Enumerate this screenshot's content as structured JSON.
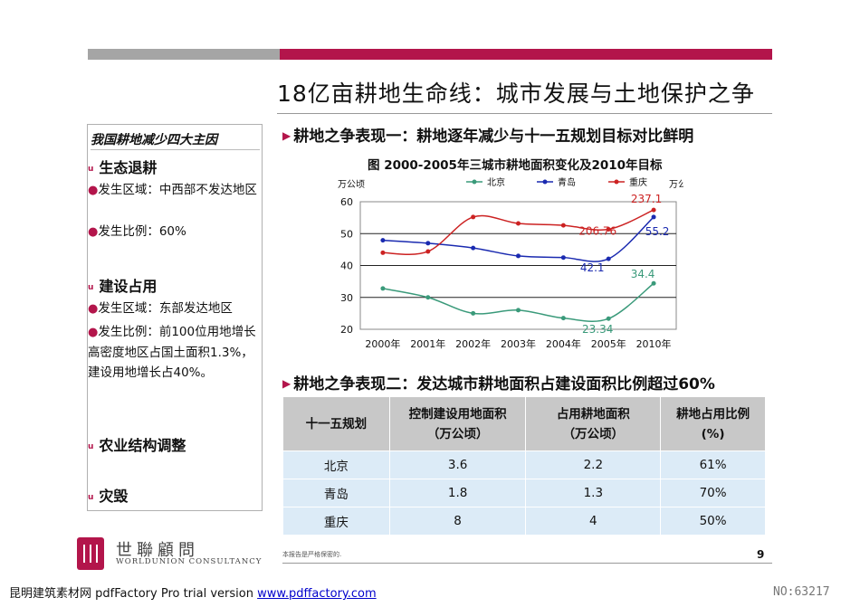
{
  "page": {
    "title": "18亿亩耕地生命线：城市发展与土地保护之争",
    "page_number": "9",
    "footnote": "本报告是严格保密的.",
    "brand_cn": "世聯顧問",
    "brand_en": "WORLDUNION CONSULTANCY",
    "bottom_text": "昆明建筑素材网 pdfFactory Pro trial version ",
    "bottom_link": "www.pdffactory.com",
    "id_label": "NO:63217",
    "accent_color": "#b3154b",
    "gray_color": "#a5a5a5"
  },
  "sidebar": {
    "heading": "我国耕地减少四大主因",
    "bullet_marker": "u",
    "dot_marker": "●",
    "causes": [
      {
        "title": "生态退耕",
        "lines": [
          "发生区域：中西部不发达地区",
          "发生比例：60%"
        ]
      },
      {
        "title": "建设占用",
        "lines": [
          "发生区域：东部发达地区",
          "发生比例：前100位用地增长高密度地区占国土面积1.3%，建设用地增长占40%。"
        ]
      },
      {
        "title": "农业结构调整",
        "lines": []
      },
      {
        "title": "灾毁",
        "lines": []
      }
    ]
  },
  "section1": {
    "marker": "▶",
    "heading": "耕地之争表现一：耕地逐年减少与十一五规划目标对比鲜明"
  },
  "section2": {
    "marker": "▶",
    "heading": "耕地之争表现二：发达城市耕地面积占建设面积比例超过60%"
  },
  "chart_data": {
    "type": "line",
    "title": "图 2000-2005年三城市耕地面积变化及2010年目标",
    "ylabel_left": "万公顷",
    "ylabel_right": "万公顷",
    "categories": [
      "2000年",
      "2001年",
      "2002年",
      "2003年",
      "2004年",
      "2005年",
      "2010年"
    ],
    "ylim_left": [
      20,
      60
    ],
    "yticks_left": [
      20,
      30,
      40,
      50,
      60
    ],
    "ylim_right": [
      50,
      250
    ],
    "yticks_right": [
      50,
      100,
      150,
      200,
      250
    ],
    "grid": "horizontal",
    "legend_position": "top",
    "series": [
      {
        "name": "北京",
        "axis": "left",
        "color": "#3a9a7a",
        "values": [
          32.8,
          30.0,
          25.0,
          26.0,
          23.5,
          23.34,
          34.4
        ]
      },
      {
        "name": "青岛",
        "axis": "left",
        "color": "#1a2ab0",
        "values": [
          47.9,
          47.0,
          45.5,
          43.0,
          42.5,
          42.1,
          55.2
        ]
      },
      {
        "name": "重庆",
        "axis": "right",
        "color": "#cc2222",
        "values": [
          170,
          172,
          226,
          216,
          213,
          206.76,
          237.1
        ]
      }
    ],
    "annotations": [
      {
        "text": "23.34",
        "series": 0,
        "index": 5
      },
      {
        "text": "34.4",
        "series": 0,
        "index": 6
      },
      {
        "text": "42.1",
        "series": 1,
        "index": 5
      },
      {
        "text": "55.2",
        "series": 1,
        "index": 6
      },
      {
        "text": "206.76",
        "series": 2,
        "index": 5
      },
      {
        "text": "237.1",
        "series": 2,
        "index": 6
      }
    ]
  },
  "table": {
    "headers": [
      "十一五规划",
      "控制建设用地面积\n（万公顷）",
      "占用耕地面积\n（万公顷）",
      "耕地占用比例\n(%)"
    ],
    "rows": [
      [
        "北京",
        "3.6",
        "2.2",
        "61%"
      ],
      [
        "青岛",
        "1.8",
        "1.3",
        "70%"
      ],
      [
        "重庆",
        "8",
        "4",
        "50%"
      ]
    ]
  }
}
